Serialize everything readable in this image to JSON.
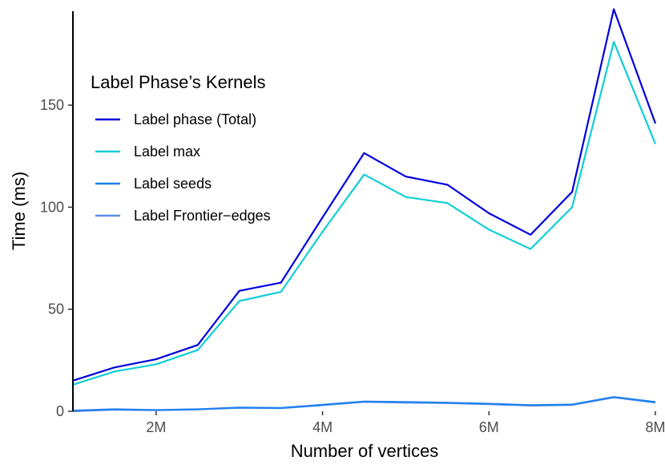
{
  "chart_data": {
    "type": "line",
    "xlabel": "Number of vertices",
    "ylabel": "Time (ms)",
    "xlim": [
      1000000,
      8000000
    ],
    "ylim": [
      0,
      196
    ],
    "x_ticks": [
      {
        "value": 2000000,
        "label": "2M"
      },
      {
        "value": 4000000,
        "label": "4M"
      },
      {
        "value": 6000000,
        "label": "6M"
      },
      {
        "value": 8000000,
        "label": "8M"
      }
    ],
    "y_ticks": [
      {
        "value": 0,
        "label": "0"
      },
      {
        "value": 50,
        "label": "50"
      },
      {
        "value": 100,
        "label": "100"
      },
      {
        "value": 150,
        "label": "150"
      }
    ],
    "grid": false,
    "legend_title": "Label Phase’s Kernels",
    "legend_position": "top-left",
    "x": [
      1000000,
      1500000,
      2000000,
      2500000,
      3000000,
      3500000,
      4000000,
      4500000,
      5000000,
      5500000,
      6000000,
      6500000,
      7000000,
      7500000,
      8000000
    ],
    "series": [
      {
        "name": "Label phase (Total)",
        "color": "#0000dd",
        "values": [
          15,
          21.5,
          25.5,
          32.5,
          59,
          63,
          95,
          126.5,
          115,
          111,
          97,
          86.5,
          107.5,
          197,
          141
        ]
      },
      {
        "name": "Label max",
        "color": "#10cfd6",
        "values": [
          13,
          19.5,
          23,
          30,
          54,
          58.5,
          88,
          116,
          105,
          102,
          89,
          79.5,
          100,
          181,
          131
        ]
      },
      {
        "name": "Label seeds",
        "color": "#1e7ff0",
        "values": [
          0.3,
          1,
          0.6,
          1,
          1.8,
          1.6,
          3.2,
          4.8,
          4.5,
          4.2,
          3.7,
          3,
          3.3,
          7,
          4.5
        ]
      },
      {
        "name": "Label Frontier−edges",
        "color": "#5a8fe8",
        "values": [
          0,
          0.8,
          0.5,
          0.9,
          1.7,
          1.5,
          3,
          4.6,
          4.3,
          4,
          3.5,
          2.8,
          3.1,
          6.8,
          4.3
        ]
      }
    ]
  }
}
